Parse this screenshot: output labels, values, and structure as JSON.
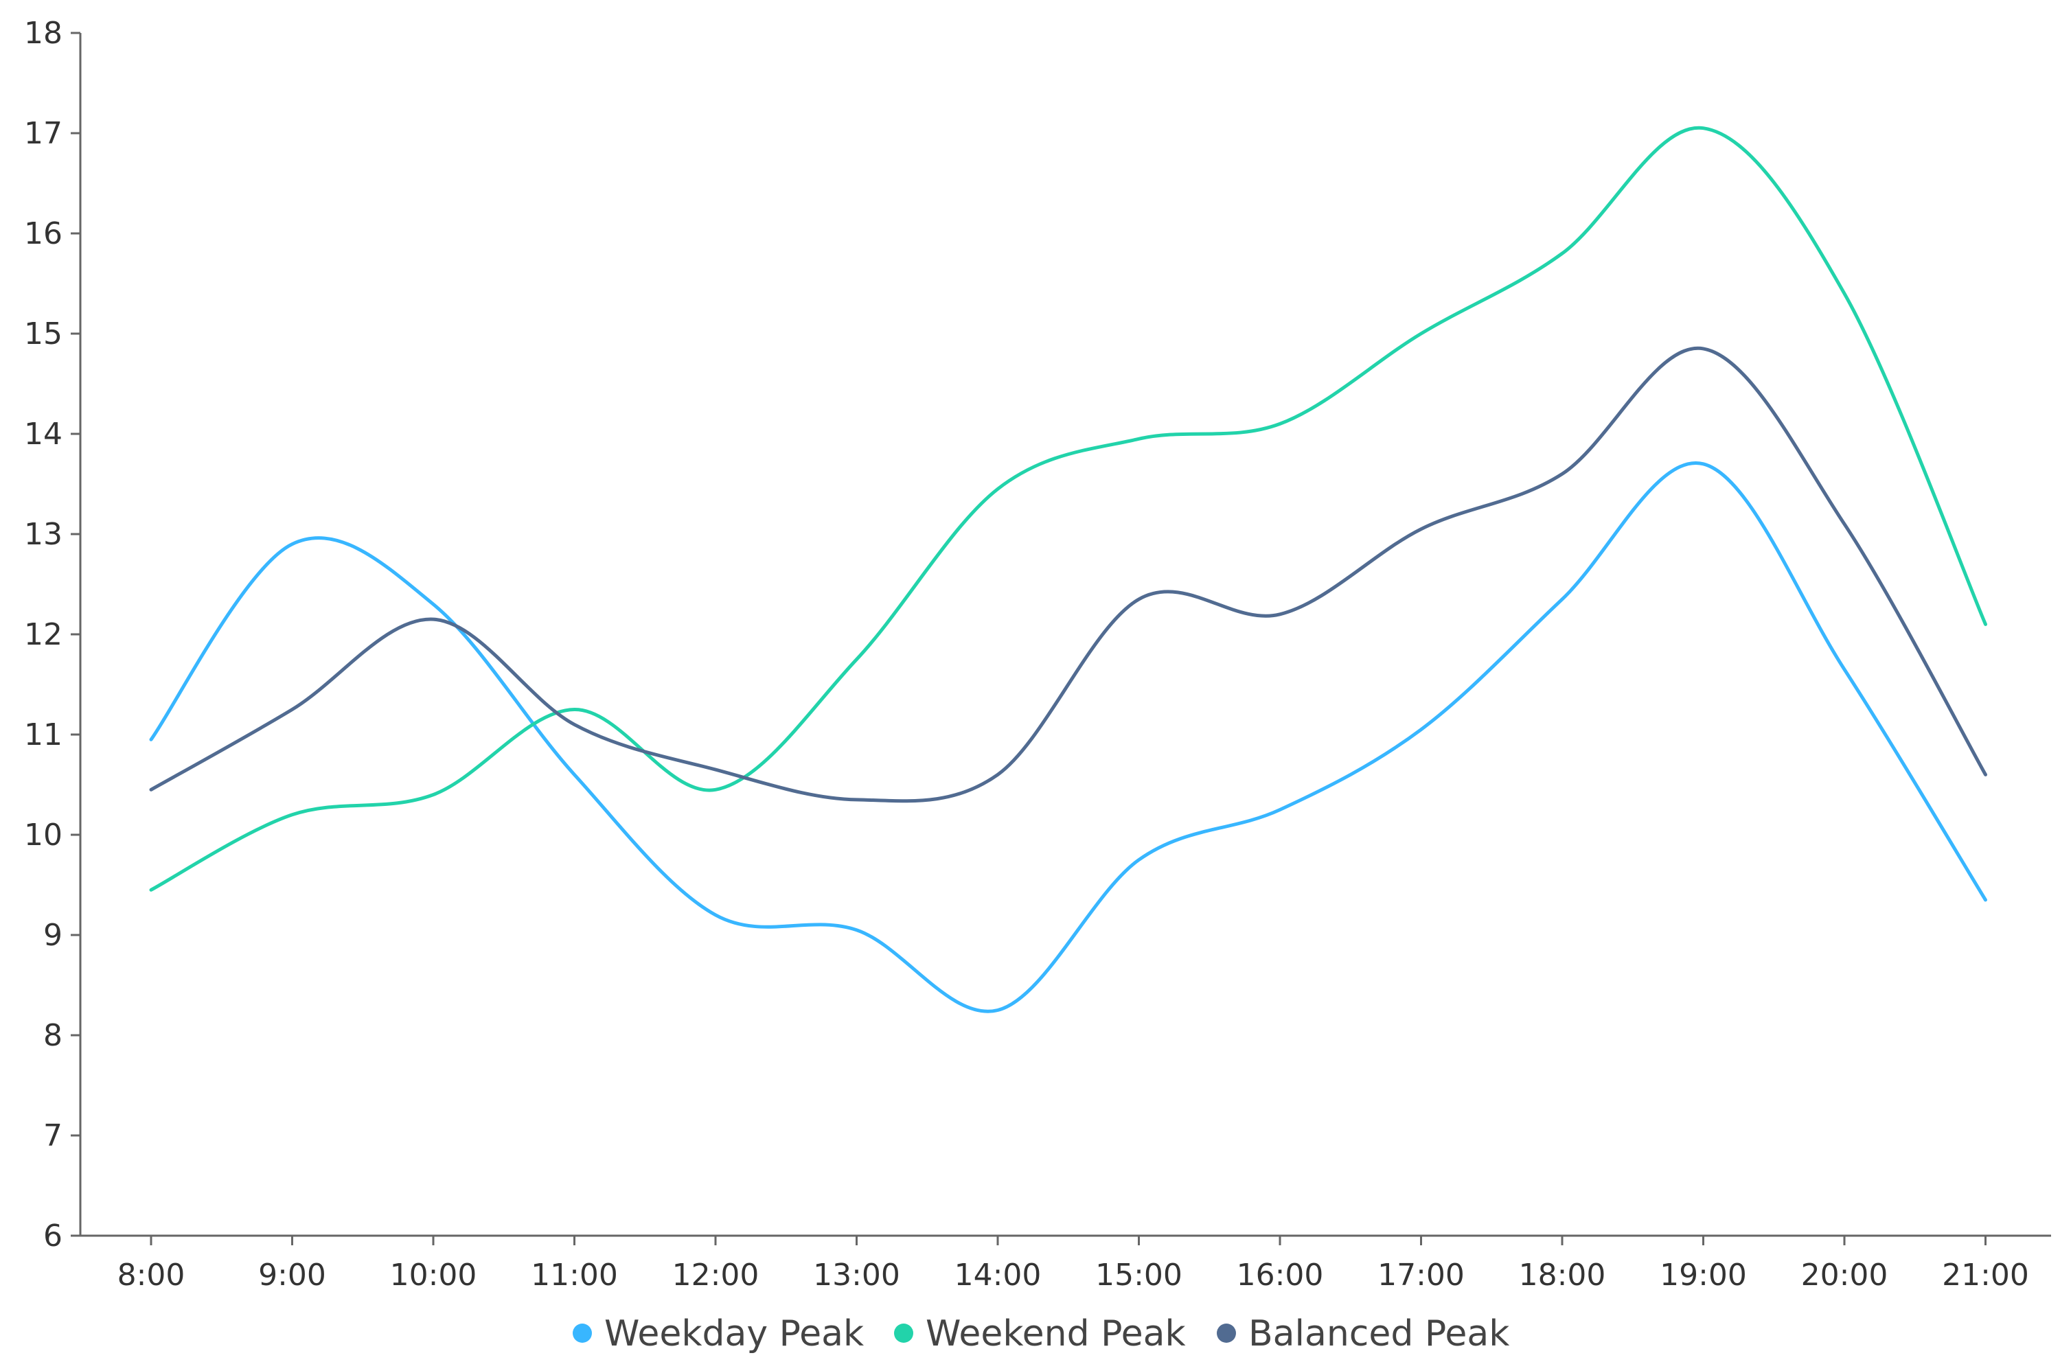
{
  "chart_data": {
    "type": "line",
    "categories": [
      "8:00",
      "9:00",
      "10:00",
      "11:00",
      "12:00",
      "13:00",
      "14:00",
      "15:00",
      "16:00",
      "17:00",
      "18:00",
      "19:00",
      "20:00",
      "21:00"
    ],
    "ylim": [
      6,
      18
    ],
    "yticks": [
      6,
      7,
      8,
      9,
      10,
      11,
      12,
      13,
      14,
      15,
      16,
      17,
      18
    ],
    "grid": false,
    "legend": "bottom-center",
    "smooth": true,
    "series": [
      {
        "name": "Weekday Peak",
        "color": "#38b6ff",
        "values": [
          10.95,
          12.9,
          12.3,
          10.6,
          9.2,
          9.05,
          8.25,
          9.75,
          10.25,
          11.05,
          12.35,
          13.7,
          11.65,
          9.35
        ]
      },
      {
        "name": "Weekend Peak",
        "color": "#22d3aa",
        "values": [
          9.45,
          10.2,
          10.4,
          11.25,
          10.45,
          11.75,
          13.45,
          13.95,
          14.1,
          15.0,
          15.8,
          17.05,
          15.4,
          12.1
        ]
      },
      {
        "name": "Balanced Peak",
        "color": "#516b91",
        "values": [
          10.45,
          11.25,
          12.15,
          11.1,
          10.65,
          10.35,
          10.6,
          12.35,
          12.2,
          13.05,
          13.6,
          14.85,
          13.1,
          10.6
        ]
      }
    ]
  }
}
